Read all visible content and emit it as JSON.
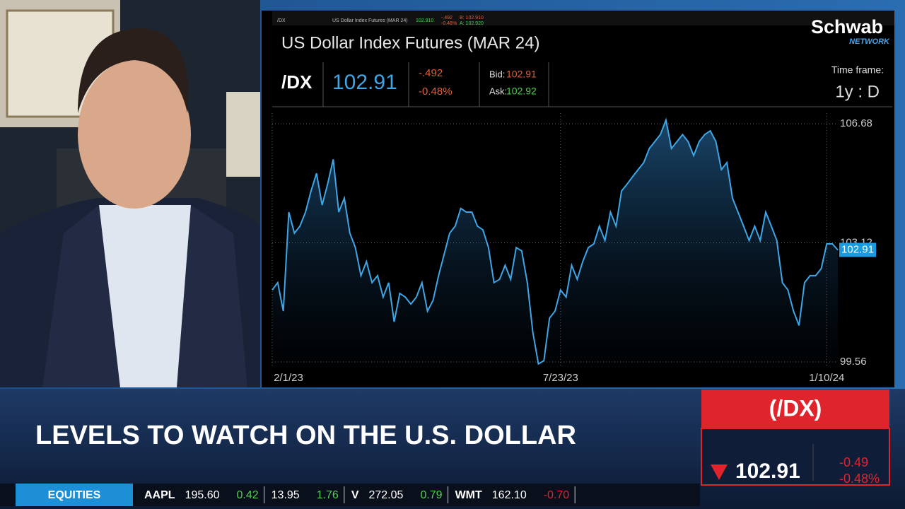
{
  "header": {
    "tiny_symbol": "/DX",
    "tiny_title": "US Dollar Index Futures (MAR 24)",
    "tiny_last": "102.910",
    "tiny_change": "-.492",
    "tiny_pct": "-0.48%",
    "tiny_bid": "B: 102.910",
    "tiny_ask": "A: 102.920"
  },
  "logo": {
    "name": "Schwab",
    "sub": "NETWORK"
  },
  "quote": {
    "symbol": "/DX",
    "price": "102.91",
    "change": "-.492",
    "pct": "-0.48%",
    "bid_label": "Bid:",
    "bid": "102.91",
    "ask_label": "Ask:",
    "ask": "102.92",
    "timeframe_label": "Time frame:",
    "timeframe": "1y : D"
  },
  "chart_data": {
    "type": "line",
    "title": "US Dollar Index Futures (MAR 24)",
    "color": "#3fa6e6",
    "values": [
      101.71,
      101.93,
      101.08,
      104.04,
      103.41,
      103.62,
      104.04,
      104.67,
      105.2,
      104.25,
      104.88,
      105.62,
      104.04,
      104.46,
      103.41,
      102.98,
      102.14,
      102.56,
      101.93,
      102.14,
      101.5,
      101.93,
      100.76,
      101.61,
      101.5,
      101.29,
      101.5,
      101.93,
      101.08,
      101.4,
      102.14,
      102.77,
      103.41,
      103.62,
      104.15,
      104.04,
      104.04,
      103.62,
      103.51,
      102.98,
      101.93,
      102.03,
      102.45,
      102.03,
      102.98,
      102.88,
      101.93,
      100.45,
      99.5,
      99.6,
      100.87,
      101.08,
      101.71,
      101.5,
      102.45,
      102.03,
      102.56,
      102.98,
      103.09,
      103.62,
      103.19,
      104.04,
      103.62,
      104.67,
      104.88,
      105.1,
      105.31,
      105.52,
      105.94,
      106.15,
      106.36,
      106.79,
      105.94,
      106.15,
      106.36,
      106.15,
      105.73,
      106.15,
      106.36,
      106.47,
      106.15,
      105.31,
      105.52,
      104.46,
      104.04,
      103.62,
      103.19,
      103.62,
      103.19,
      104.04,
      103.62,
      103.19,
      101.93,
      101.71,
      101.08,
      100.65,
      101.93,
      102.14,
      102.14,
      102.35,
      103.09,
      103.09,
      102.91
    ],
    "last_label": 102.91,
    "ylim": [
      99.39,
      107.0
    ],
    "yticks": [
      106.68,
      103.12,
      99.56
    ],
    "xlim": [
      0,
      102
    ],
    "xticks": [
      {
        "value": 0,
        "label": "2/1/23"
      },
      {
        "value": 52,
        "label": "7/23/23"
      },
      {
        "value": 100,
        "label": "1/10/24"
      }
    ],
    "grid": true
  },
  "lower_third": {
    "headline": "LEVELS TO WATCH ON THE U.S. DOLLAR",
    "box_symbol": "(/DX)",
    "box_price": "102.91",
    "box_change": "-0.49",
    "box_pct": "-0.48%"
  },
  "ticker": {
    "label": "EQUITIES",
    "items": [
      {
        "symbol": "AAPL",
        "price": "195.60",
        "change": "0.42"
      },
      {
        "price": "13.95",
        "change": "1.76"
      },
      {
        "symbol": "V",
        "price": "272.05",
        "change": "0.79"
      },
      {
        "symbol": "WMT",
        "price": "162.10",
        "change": "-0.70"
      }
    ]
  }
}
